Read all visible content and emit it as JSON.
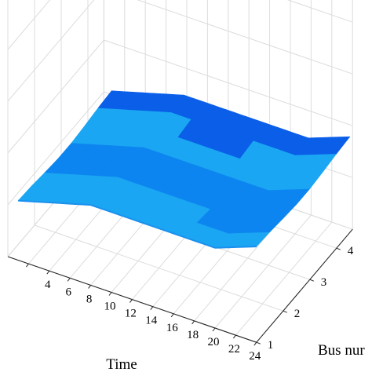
{
  "chart_data": {
    "type": "surface",
    "x_axis": {
      "label": "Time",
      "ticks": [
        "4",
        "6",
        "8",
        "10",
        "12",
        "14",
        "16",
        "18",
        "20",
        "22",
        "24"
      ],
      "range": [
        1,
        24
      ]
    },
    "y_axis": {
      "label": "Bus nur",
      "ticks": [
        "1",
        "2",
        "3",
        "4"
      ],
      "range": [
        1,
        4.5
      ]
    },
    "z_axis": {
      "label": "",
      "ticks": []
    },
    "grid": true,
    "colors": {
      "light": "#1aa6f2",
      "mid": "#0d85f0",
      "dark": "#0a5ee8",
      "edge": "#1a90ee"
    },
    "surface_bands": [
      {
        "bus": 1,
        "tone": "light"
      },
      {
        "bus": 2,
        "tone": "mid"
      },
      {
        "bus": 3,
        "tone": "light"
      },
      {
        "bus": 4,
        "tone": "dark"
      },
      {
        "bus": 4.5,
        "tone": "mid"
      }
    ]
  }
}
